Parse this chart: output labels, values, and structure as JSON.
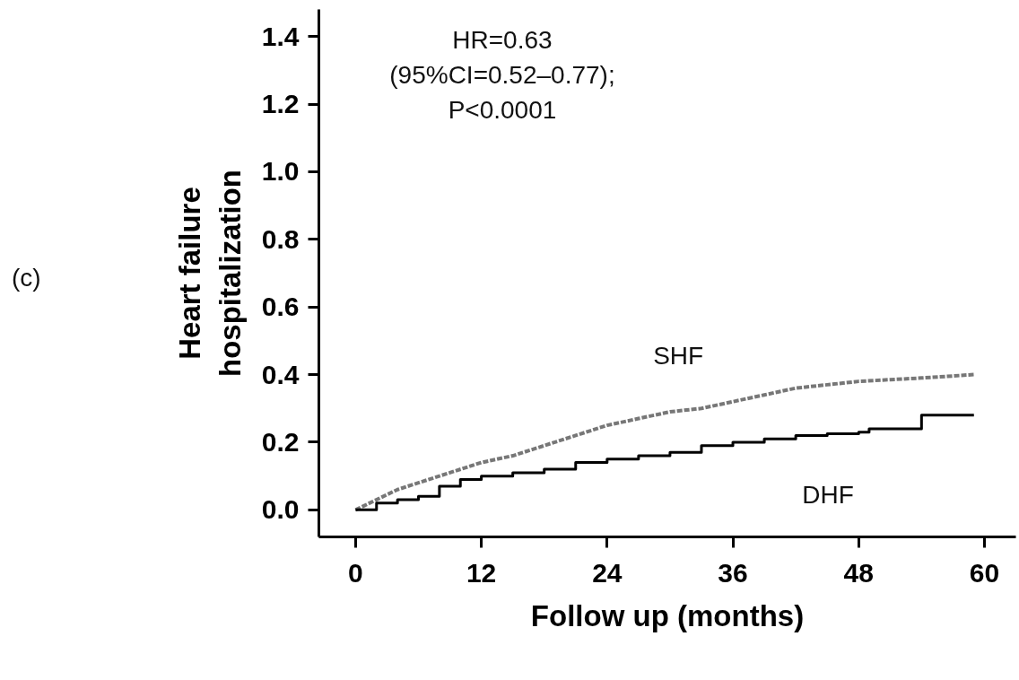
{
  "chart_data": {
    "type": "line",
    "xlabel": "Follow up (months)",
    "ylabel": "Heart failure\nhospitalization",
    "xlim": [
      -3.5,
      63
    ],
    "ylim": [
      -0.08,
      1.48
    ],
    "xticks": [
      0,
      12,
      24,
      36,
      48,
      60
    ],
    "yticks": [
      {
        "value": 0,
        "label": "0.0"
      },
      {
        "value": 0.2,
        "label": "0.2"
      },
      {
        "value": 0.4,
        "label": "0.4"
      },
      {
        "value": 0.6,
        "label": "0.6"
      },
      {
        "value": 0.8,
        "label": "0.8"
      },
      {
        "value": 1,
        "label": "1.0"
      },
      {
        "value": 1.2,
        "label": "1.2"
      },
      {
        "value": 1.4,
        "label": "1.4"
      }
    ],
    "grid": false,
    "legend": false,
    "series": [
      {
        "name": "SHF",
        "color": "#777777",
        "line_style": "dashed",
        "x": [
          0,
          2,
          4,
          6,
          9,
          12,
          15,
          18,
          21,
          24,
          27,
          30,
          33,
          36,
          39,
          42,
          45,
          48,
          51,
          54,
          59
        ],
        "values": [
          0,
          0.03,
          0.06,
          0.08,
          0.11,
          0.14,
          0.16,
          0.19,
          0.22,
          0.25,
          0.27,
          0.29,
          0.3,
          0.32,
          0.34,
          0.36,
          0.37,
          0.38,
          0.385,
          0.39,
          0.4
        ]
      },
      {
        "name": "DHF",
        "color": "#000000",
        "type": "step",
        "line_style": "solid",
        "x": [
          0,
          2,
          4,
          6,
          8,
          10,
          12,
          15,
          18,
          21,
          24,
          27,
          30,
          33,
          36,
          39,
          42,
          45,
          48,
          49,
          50,
          54,
          59
        ],
        "values": [
          0,
          0.02,
          0.03,
          0.04,
          0.07,
          0.09,
          0.1,
          0.11,
          0.12,
          0.14,
          0.15,
          0.16,
          0.17,
          0.19,
          0.2,
          0.21,
          0.22,
          0.225,
          0.23,
          0.24,
          0.24,
          0.28,
          0.28
        ]
      }
    ],
    "annotations": [
      "HR=0.63\n(95%CI=0.52–0.77);\nP<0.0001",
      "(c)"
    ]
  }
}
